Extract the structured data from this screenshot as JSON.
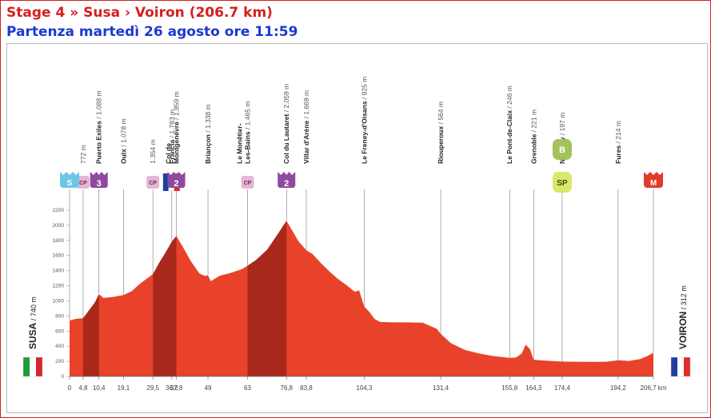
{
  "header": {
    "title": "Stage 4 » Susa › Voiron (206.7 km)",
    "subtitle": "Partenza martedì 26 agosto ore 11:59"
  },
  "colors": {
    "title": "#d41f1f",
    "subtitle": "#1a3ad1",
    "profile_fill": "#e8432a",
    "climb_fill": "#a8281c",
    "cp_badge": "#e6b6d4",
    "climb_badge": "#8f4a9e",
    "start_badge": "#6ec6e6",
    "finish_badge": "#e23a2a",
    "bonus_badge": "#a3c25a",
    "sprint_badge": "#d9e86a"
  },
  "chart_data": {
    "type": "area",
    "title": "",
    "xlabel": "",
    "ylabel": "",
    "x_unit": "km",
    "xlim": [
      0,
      206.7
    ],
    "ylim": [
      0,
      2200
    ],
    "y_ticks": [
      0,
      200,
      400,
      600,
      800,
      1000,
      1200,
      1400,
      1600,
      1800,
      2000,
      2200
    ],
    "x_ticks": [
      {
        "km": 0,
        "label": "0"
      },
      {
        "km": 4.8,
        "label": "4,8"
      },
      {
        "km": 10.4,
        "label": "10,4"
      },
      {
        "km": 19.1,
        "label": "19,1"
      },
      {
        "km": 29.5,
        "label": "29,5"
      },
      {
        "km": 36.2,
        "label": "36,2"
      },
      {
        "km": 37.8,
        "label": "37,8"
      },
      {
        "km": 49,
        "label": "49"
      },
      {
        "km": 63,
        "label": "63"
      },
      {
        "km": 76.8,
        "label": "76,8"
      },
      {
        "km": 83.8,
        "label": "83,8"
      },
      {
        "km": 104.3,
        "label": "104,3"
      },
      {
        "km": 131.4,
        "label": "131,4"
      },
      {
        "km": 155.8,
        "label": "155,8"
      },
      {
        "km": 164.3,
        "label": "164,3"
      },
      {
        "km": 174.4,
        "label": "174,4"
      },
      {
        "km": 194.2,
        "label": "194,2"
      },
      {
        "km": 206.7,
        "label": "206,7 km"
      }
    ],
    "profile": [
      [
        0,
        740
      ],
      [
        2,
        760
      ],
      [
        4.8,
        772
      ],
      [
        7,
        880
      ],
      [
        9,
        980
      ],
      [
        10.4,
        1088
      ],
      [
        12,
        1040
      ],
      [
        15,
        1050
      ],
      [
        19.1,
        1078
      ],
      [
        22,
        1130
      ],
      [
        25,
        1230
      ],
      [
        29.5,
        1354
      ],
      [
        32,
        1520
      ],
      [
        34,
        1640
      ],
      [
        36.2,
        1783
      ],
      [
        37.8,
        1859
      ],
      [
        40,
        1720
      ],
      [
        43,
        1520
      ],
      [
        46,
        1360
      ],
      [
        48,
        1330
      ],
      [
        49,
        1338
      ],
      [
        50,
        1260
      ],
      [
        53,
        1330
      ],
      [
        57,
        1370
      ],
      [
        61,
        1420
      ],
      [
        63,
        1465
      ],
      [
        66,
        1540
      ],
      [
        70,
        1680
      ],
      [
        74,
        1900
      ],
      [
        76.8,
        2059
      ],
      [
        79,
        1920
      ],
      [
        81,
        1790
      ],
      [
        83.8,
        1669
      ],
      [
        86,
        1620
      ],
      [
        89,
        1500
      ],
      [
        92,
        1390
      ],
      [
        95,
        1290
      ],
      [
        98,
        1210
      ],
      [
        101,
        1120
      ],
      [
        102.5,
        1140
      ],
      [
        104.3,
        925
      ],
      [
        106,
        860
      ],
      [
        108,
        760
      ],
      [
        110,
        720
      ],
      [
        115,
        715
      ],
      [
        120,
        715
      ],
      [
        125,
        712
      ],
      [
        130,
        630
      ],
      [
        131.4,
        564
      ],
      [
        135,
        440
      ],
      [
        140,
        350
      ],
      [
        145,
        305
      ],
      [
        150,
        270
      ],
      [
        155.8,
        246
      ],
      [
        158,
        250
      ],
      [
        160,
        300
      ],
      [
        161.5,
        420
      ],
      [
        163,
        360
      ],
      [
        164.3,
        221
      ],
      [
        168,
        210
      ],
      [
        174.4,
        197
      ],
      [
        180,
        195
      ],
      [
        185,
        193
      ],
      [
        190,
        195
      ],
      [
        194.2,
        214
      ],
      [
        198,
        205
      ],
      [
        202,
        230
      ],
      [
        204,
        260
      ],
      [
        206.7,
        312
      ]
    ],
    "climb_segments": [
      [
        4.8,
        10.4
      ],
      [
        29.5,
        37.8
      ],
      [
        63,
        76.8
      ]
    ],
    "vertical_markers": [
      {
        "km": 4.8,
        "label": "772 m",
        "label_parts": [],
        "badge": "cp",
        "badge_text": "CP"
      },
      {
        "km": 10.4,
        "label": "/ 1.088 m",
        "label_parts": [
          "Puerto Exiles"
        ],
        "badge": "climb",
        "badge_text": "3"
      },
      {
        "km": 19.1,
        "label": "/ 1.078 m",
        "label_parts": [
          "Oulx"
        ],
        "badge": "",
        "badge_text": ""
      },
      {
        "km": 29.5,
        "label": "1.354 m",
        "label_parts": [],
        "badge": "cp",
        "badge_text": "CP"
      },
      {
        "km": 36.2,
        "label": "/ 1.783 m",
        "label_parts": [
          "Francia"
        ],
        "badge": "flag-fr",
        "badge_text": ""
      },
      {
        "km": 37.8,
        "label": "/ 1.859 m",
        "label_parts": [
          "Col de",
          "Montgenèvre"
        ],
        "badge": "climb",
        "badge_text": "2"
      },
      {
        "km": 49,
        "label": "/ 1.338 m",
        "label_parts": [
          "Briançon"
        ],
        "badge": "",
        "badge_text": ""
      },
      {
        "km": 63,
        "label": "/ 1.465 m",
        "label_parts": [
          "Le Monêtier-",
          "Les-Bains"
        ],
        "badge": "cp",
        "badge_text": "CP"
      },
      {
        "km": 76.8,
        "label": "/ 2.059 m",
        "label_parts": [
          "Col du Lautaret"
        ],
        "badge": "climb",
        "badge_text": "2"
      },
      {
        "km": 83.8,
        "label": "/ 1.669 m",
        "label_parts": [
          "Villar d'Arène"
        ],
        "badge": "",
        "badge_text": ""
      },
      {
        "km": 104.3,
        "label": "/ 925 m",
        "label_parts": [
          "Le Freney-d'Oisans"
        ],
        "badge": "",
        "badge_text": ""
      },
      {
        "km": 131.4,
        "label": "/ 564 m",
        "label_parts": [
          "Riouperoux"
        ],
        "badge": "",
        "badge_text": ""
      },
      {
        "km": 155.8,
        "label": "/ 246 m",
        "label_parts": [
          "Le Pont-de-Claix"
        ],
        "badge": "",
        "badge_text": ""
      },
      {
        "km": 164.3,
        "label": "/ 221 m",
        "label_parts": [
          "Grenoble"
        ],
        "badge": "",
        "badge_text": ""
      },
      {
        "km": 174.4,
        "label": "/ 197 m",
        "label_parts": [
          "Noyarey"
        ],
        "badge": "bonus-sprint",
        "badge_text": "B",
        "badge_text_2": "SP"
      },
      {
        "km": 194.2,
        "label": "/ 214 m",
        "label_parts": [
          "Fures"
        ],
        "badge": "",
        "badge_text": ""
      },
      {
        "km": 0,
        "label": "",
        "label_parts": [],
        "badge": "start",
        "badge_text": "S"
      },
      {
        "km": 206.7,
        "label": "",
        "label_parts": [],
        "badge": "finish",
        "badge_text": "M"
      }
    ],
    "start": {
      "name": "SUSA",
      "alt": "/ 740 m",
      "flag": "it"
    },
    "finish": {
      "name": "VOIRON",
      "alt": "/ 312 m",
      "flag": "fr"
    }
  }
}
